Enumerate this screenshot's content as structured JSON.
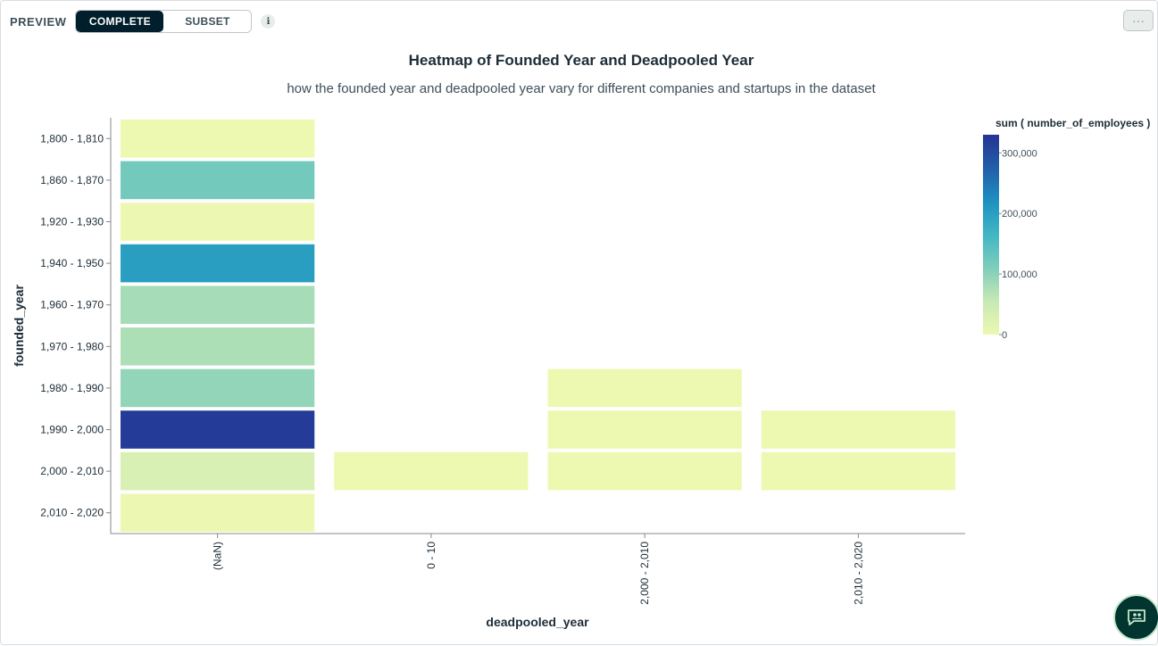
{
  "toolbar": {
    "preview_label": "PREVIEW",
    "complete_label": "COMPLETE",
    "subset_label": "SUBSET",
    "info_label": "i",
    "more_label": "···"
  },
  "colors": {
    "scale": [
      "#edf8b1",
      "#c7e9b4",
      "#7fcdbb",
      "#41b6c4",
      "#1d91c0",
      "#225ea8",
      "#253494"
    ],
    "axis": "#888888",
    "dark": "#001e2b"
  },
  "icons": {
    "info": "info-icon",
    "more": "ellipsis-icon",
    "chat": "chat-icon"
  },
  "chart_data": {
    "type": "heatmap",
    "title": "Heatmap of Founded Year and Deadpooled Year",
    "subtitle": "how the founded year and deadpooled year vary for different companies and startups in the dataset",
    "xlabel": "deadpooled_year",
    "ylabel": "founded_year",
    "x_categories": [
      "(NaN)",
      "0 - 10",
      "2,000 - 2,010",
      "2,010 - 2,020"
    ],
    "y_categories": [
      "1,800 - 1,810",
      "1,860 - 1,870",
      "1,920 - 1,930",
      "1,940 - 1,950",
      "1,960 - 1,970",
      "1,970 - 1,980",
      "1,980 - 1,990",
      "1,990 - 2,000",
      "2,000 - 2,010",
      "2,010 - 2,020"
    ],
    "cells": [
      {
        "x": "(NaN)",
        "y": "1,800 - 1,810",
        "value": 500
      },
      {
        "x": "(NaN)",
        "y": "1,860 - 1,870",
        "value": 120000
      },
      {
        "x": "(NaN)",
        "y": "1,920 - 1,930",
        "value": 1000
      },
      {
        "x": "(NaN)",
        "y": "1,940 - 1,950",
        "value": 200000
      },
      {
        "x": "(NaN)",
        "y": "1,960 - 1,970",
        "value": 80000
      },
      {
        "x": "(NaN)",
        "y": "1,970 - 1,980",
        "value": 75000
      },
      {
        "x": "(NaN)",
        "y": "1,980 - 1,990",
        "value": 95000
      },
      {
        "x": "(NaN)",
        "y": "1,990 - 2,000",
        "value": 320000
      },
      {
        "x": "(NaN)",
        "y": "2,000 - 2,010",
        "value": 30000
      },
      {
        "x": "(NaN)",
        "y": "2,010 - 2,020",
        "value": 1000
      },
      {
        "x": "0 - 10",
        "y": "2,000 - 2,010",
        "value": 100
      },
      {
        "x": "2,000 - 2,010",
        "y": "1,980 - 1,990",
        "value": 100
      },
      {
        "x": "2,000 - 2,010",
        "y": "1,990 - 2,000",
        "value": 100
      },
      {
        "x": "2,000 - 2,010",
        "y": "2,000 - 2,010",
        "value": 100
      },
      {
        "x": "2,010 - 2,020",
        "y": "1,990 - 2,000",
        "value": 100
      },
      {
        "x": "2,010 - 2,020",
        "y": "2,000 - 2,010",
        "value": 100
      }
    ],
    "color_domain": [
      0,
      330000
    ],
    "legend": {
      "title": "sum ( number_of_employees )",
      "ticks": [
        0,
        100000,
        200000,
        300000
      ],
      "tick_labels": [
        "0",
        "100,000",
        "200,000",
        "300,000"
      ],
      "position": "right"
    },
    "grid": false
  }
}
